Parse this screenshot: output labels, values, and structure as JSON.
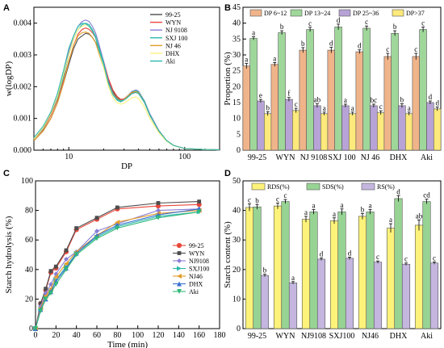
{
  "panels": [
    "A",
    "B",
    "C",
    "D"
  ],
  "colors": {
    "s1": "#e8483c",
    "s2": "#4d4d4d",
    "s3": "#8a7fd6",
    "s4": "#2eb8b0",
    "s5": "#e39c2b",
    "s6": "#3a6fd0",
    "s7": "#34b97a",
    "b1": "#f0b48a",
    "b2": "#9fd79a",
    "b3": "#b7a3d6",
    "b4": "#fde97c",
    "d1": "#fdf27a",
    "d2": "#97d494",
    "d3": "#c4b6df"
  },
  "chart_data": [
    {
      "type": "line",
      "panel": "A",
      "xlabel": "DP",
      "ylabel": "w(logDP)",
      "x_scale": "log",
      "xlim": [
        5,
        200
      ],
      "ylim": [
        0,
        0.0045
      ],
      "x_ticks": [
        {
          "v": 10,
          "label": "10"
        },
        {
          "v": 100,
          "label": "100"
        }
      ],
      "y_ticks": [
        {
          "v": 0,
          "label": "0.000"
        },
        {
          "v": 0.001,
          "label": "0.001"
        },
        {
          "v": 0.002,
          "label": "0.002"
        },
        {
          "v": 0.003,
          "label": "0.003"
        },
        {
          "v": 0.004,
          "label": "0.004"
        }
      ],
      "x": [
        5,
        6,
        7,
        8,
        9,
        10,
        11,
        12,
        13,
        14,
        15,
        16,
        17,
        18,
        20,
        22,
        24,
        26,
        28,
        30,
        32,
        35,
        38,
        40,
        45,
        50,
        60,
        70,
        80,
        100,
        150,
        200
      ],
      "series": [
        {
          "name": "99-25",
          "color_key": "s2",
          "values": [
            0.0003,
            0.0006,
            0.001,
            0.0015,
            0.0021,
            0.0027,
            0.0032,
            0.0035,
            0.0036,
            0.00368,
            0.00365,
            0.00355,
            0.0034,
            0.0032,
            0.0027,
            0.0022,
            0.00185,
            0.00165,
            0.00158,
            0.0016,
            0.00168,
            0.00178,
            0.00182,
            0.00178,
            0.0015,
            0.0011,
            0.0006,
            0.0003,
            0.00015,
            5e-05,
            2e-05,
            1e-05
          ]
        },
        {
          "name": "WYN",
          "color_key": "s1",
          "values": [
            0.00035,
            0.00065,
            0.0011,
            0.0016,
            0.0022,
            0.0028,
            0.0033,
            0.00365,
            0.0038,
            0.00385,
            0.0038,
            0.0037,
            0.00355,
            0.0033,
            0.0028,
            0.00225,
            0.0019,
            0.0017,
            0.0016,
            0.00162,
            0.0017,
            0.0018,
            0.00185,
            0.0018,
            0.0015,
            0.0011,
            0.0006,
            0.0003,
            0.00015,
            5e-05,
            2e-05,
            1e-05
          ]
        },
        {
          "name": "NJ 9108",
          "color_key": "s3",
          "values": [
            0.00035,
            0.0007,
            0.0012,
            0.0017,
            0.0024,
            0.0031,
            0.0036,
            0.0039,
            0.00405,
            0.0041,
            0.00405,
            0.0039,
            0.0037,
            0.0034,
            0.0028,
            0.00215,
            0.0018,
            0.00162,
            0.00156,
            0.0016,
            0.0017,
            0.00185,
            0.0019,
            0.00185,
            0.00155,
            0.00115,
            0.00062,
            0.0003,
            0.00015,
            5e-05,
            2e-05,
            1e-05
          ]
        },
        {
          "name": "SXJ 100",
          "color_key": "s4",
          "values": [
            0.00035,
            0.00068,
            0.00115,
            0.00165,
            0.0023,
            0.003,
            0.0035,
            0.0038,
            0.00395,
            0.004,
            0.00395,
            0.0038,
            0.0036,
            0.0033,
            0.00275,
            0.0021,
            0.00175,
            0.00158,
            0.00152,
            0.00158,
            0.00168,
            0.00183,
            0.00188,
            0.00183,
            0.00153,
            0.00112,
            0.0006,
            0.0003,
            0.00015,
            5e-05,
            2e-05,
            1e-05
          ]
        },
        {
          "name": "NJ 46",
          "color_key": "s5",
          "values": [
            0.0003,
            0.0006,
            0.001,
            0.0015,
            0.0021,
            0.0028,
            0.0033,
            0.0036,
            0.0037,
            0.00372,
            0.00368,
            0.00355,
            0.0034,
            0.0031,
            0.0026,
            0.0021,
            0.00178,
            0.00162,
            0.00156,
            0.0016,
            0.0017,
            0.00182,
            0.00185,
            0.0018,
            0.0015,
            0.0011,
            0.0006,
            0.0003,
            0.00015,
            5e-05,
            2e-05,
            1e-05
          ]
        },
        {
          "name": "DHX",
          "color_key": "d1",
          "values": [
            0.00035,
            0.0007,
            0.00115,
            0.0017,
            0.0024,
            0.003,
            0.0035,
            0.0038,
            0.0039,
            0.00395,
            0.0039,
            0.00375,
            0.00355,
            0.0032,
            0.0026,
            0.002,
            0.00165,
            0.0015,
            0.00145,
            0.00148,
            0.00155,
            0.00165,
            0.00168,
            0.00162,
            0.00135,
            0.001,
            0.00055,
            0.00028,
            0.00014,
            5e-05,
            2e-05,
            1e-05
          ]
        },
        {
          "name": "Aki",
          "color_key": "s4",
          "values": [
            0.0004,
            0.00075,
            0.0012,
            0.0018,
            0.0025,
            0.0032,
            0.0036,
            0.0039,
            0.004,
            0.00398,
            0.0039,
            0.00375,
            0.00355,
            0.0032,
            0.0027,
            0.0021,
            0.00175,
            0.0016,
            0.00155,
            0.00158,
            0.00165,
            0.00178,
            0.00182,
            0.00178,
            0.0015,
            0.0011,
            0.0006,
            0.0003,
            0.00015,
            5e-05,
            2e-05,
            1e-05
          ]
        }
      ]
    },
    {
      "type": "bar",
      "panel": "B",
      "xlabel": "",
      "ylabel": "Proportion (%)",
      "ylim": [
        0,
        45
      ],
      "y_ticks": [
        0,
        5,
        10,
        15,
        20,
        25,
        30,
        35,
        40,
        45
      ],
      "categories": [
        "99-25",
        "WYN",
        "NJ 9108",
        "SXJ 100",
        "NJ 46",
        "DHX",
        "Aki"
      ],
      "series": [
        {
          "name": "DP 6~12",
          "color_key": "b1",
          "values": [
            26.5,
            27,
            31.5,
            31.5,
            31,
            29.5,
            29.5
          ],
          "errors": [
            0.8,
            0.6,
            0.8,
            0.9,
            0.6,
            1.0,
            1.0
          ],
          "letters": [
            "a",
            "a",
            "b",
            "d",
            "d",
            "c",
            "c"
          ]
        },
        {
          "name": "DP 13~24",
          "color_key": "b2",
          "values": [
            35.2,
            37,
            38,
            38.8,
            38.4,
            36.8,
            38
          ],
          "errors": [
            0.5,
            0.6,
            0.7,
            0.9,
            0.7,
            0.8,
            0.8
          ],
          "letters": [
            "a",
            "b",
            "c",
            "d",
            "c",
            "b",
            "c"
          ]
        },
        {
          "name": "DP 25~36",
          "color_key": "b3",
          "values": [
            15.5,
            16,
            14,
            14,
            14,
            14,
            15
          ],
          "errors": [
            0.5,
            0.6,
            0.6,
            0.5,
            0.5,
            0.6,
            0.5
          ],
          "letters": [
            "e",
            "f",
            "ab",
            "a",
            "bc",
            "b",
            "d"
          ]
        },
        {
          "name": "DP>37",
          "color_key": "b4",
          "values": [
            11.5,
            12.5,
            11.5,
            11.5,
            11.8,
            11.5,
            13
          ],
          "errors": [
            0.6,
            0.7,
            0.5,
            0.5,
            0.6,
            0.5,
            0.6
          ],
          "letters": [
            "b",
            "c",
            "a",
            "a",
            "c",
            "a",
            "d"
          ]
        }
      ]
    },
    {
      "type": "line",
      "panel": "C",
      "xlabel": "Time (min)",
      "ylabel": "Starch hydrolysis (%)",
      "xlim": [
        0,
        180
      ],
      "ylim": [
        0,
        100
      ],
      "x_ticks": [
        0,
        20,
        40,
        60,
        80,
        100,
        120,
        140,
        160,
        180
      ],
      "y_ticks": [
        0,
        20,
        40,
        60,
        80,
        100
      ],
      "x": [
        0,
        5,
        10,
        15,
        20,
        30,
        40,
        60,
        80,
        120,
        160
      ],
      "series": [
        {
          "name": "99-25",
          "color_key": "s1",
          "marker": "circle",
          "values": [
            0,
            17,
            26,
            38,
            41,
            52,
            67,
            74,
            81,
            83,
            84
          ]
        },
        {
          "name": "WYN",
          "color_key": "s2",
          "marker": "square",
          "values": [
            0,
            17,
            27,
            39,
            42,
            53,
            68,
            75,
            82,
            85,
            86
          ]
        },
        {
          "name": "NJ9108",
          "color_key": "s3",
          "marker": "diamond",
          "values": [
            0,
            15,
            24,
            30,
            37,
            47,
            52,
            66,
            71,
            80,
            81
          ]
        },
        {
          "name": "SXJ100",
          "color_key": "s4",
          "marker": "tri-right",
          "values": [
            0,
            13,
            21,
            25,
            33,
            42,
            51,
            62,
            69,
            76,
            79
          ]
        },
        {
          "name": "NJ46",
          "color_key": "s5",
          "marker": "tri-left",
          "values": [
            0,
            14,
            22,
            27,
            35,
            44,
            52,
            63,
            72,
            78,
            80
          ]
        },
        {
          "name": "DHX",
          "color_key": "s6",
          "marker": "tri-up",
          "values": [
            0,
            13,
            20,
            25,
            32,
            41,
            51,
            63,
            70,
            77,
            81
          ]
        },
        {
          "name": "Aki",
          "color_key": "s7",
          "marker": "tri-down",
          "values": [
            0,
            12,
            20,
            24,
            30,
            40,
            50,
            61,
            68,
            75,
            79
          ]
        }
      ]
    },
    {
      "type": "bar",
      "panel": "D",
      "xlabel": "",
      "ylabel": "Starch content (%)",
      "ylim": [
        0,
        50
      ],
      "y_ticks": [
        0,
        10,
        20,
        30,
        40,
        50
      ],
      "categories": [
        "99-25",
        "WYN",
        "NJ9108",
        "SXJ100",
        "NJ46",
        "DHX",
        "Aki"
      ],
      "series": [
        {
          "name": "RDS(%)",
          "color_key": "d1",
          "values": [
            41,
            41.5,
            37,
            36.5,
            38,
            34,
            35
          ],
          "errors": [
            1.2,
            1.0,
            1.0,
            1.0,
            1.0,
            1.5,
            1.8
          ],
          "letters": [
            "c",
            "c",
            "a",
            "a",
            "b",
            "a",
            "ab"
          ]
        },
        {
          "name": "SDS(%)",
          "color_key": "d2",
          "values": [
            41.2,
            43,
            39.5,
            39.5,
            39.5,
            44,
            43
          ],
          "errors": [
            0.8,
            0.7,
            0.8,
            1.0,
            0.8,
            1.0,
            0.8
          ],
          "letters": [
            "b",
            "c",
            "a",
            "a",
            "a",
            "d",
            "cd"
          ]
        },
        {
          "name": "RS(%)",
          "color_key": "d3",
          "values": [
            18,
            15.5,
            23.5,
            23.8,
            22.5,
            21.8,
            22.2
          ],
          "errors": [
            0.4,
            0.4,
            0.4,
            0.4,
            0.4,
            0.4,
            0.4
          ],
          "letters": [
            "b",
            "a",
            "d",
            "d",
            "c",
            "c",
            "c"
          ]
        }
      ]
    }
  ]
}
